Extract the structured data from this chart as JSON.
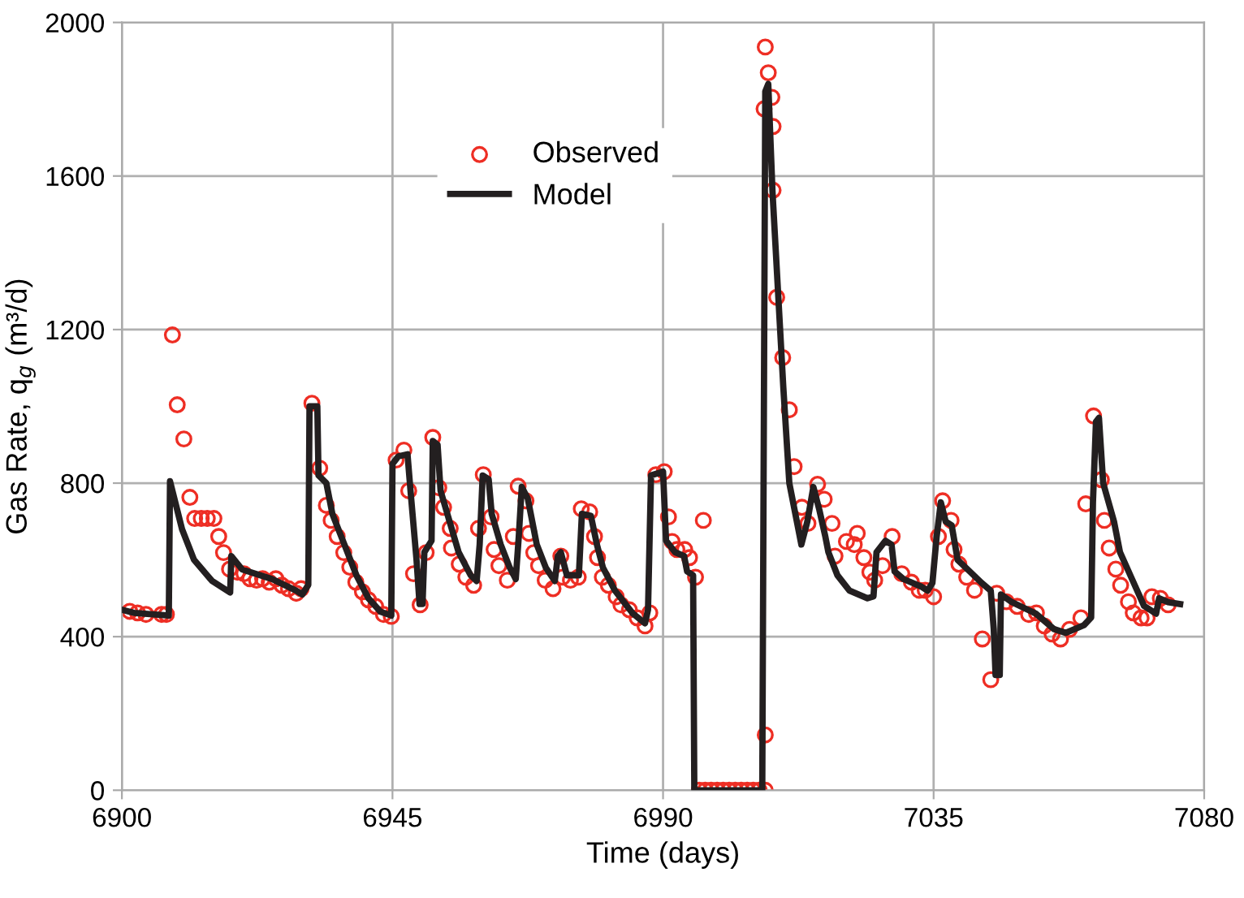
{
  "chart_data": {
    "type": "scatter",
    "xlabel": "Time (days)",
    "ylabel": "Gas Rate, q$_{g}$ (m³/d)",
    "xlim": [
      6900,
      7080
    ],
    "xticks": [
      6900,
      6945,
      6990,
      7035,
      7080
    ],
    "ylim": [
      0,
      2000
    ],
    "yticks": [
      0,
      400,
      800,
      1200,
      1600,
      2000
    ],
    "grid": true,
    "legend": "top",
    "series": [
      {
        "name": "Observed",
        "marker": "circle",
        "color": "#ee2e24",
        "x": [
          6901.3,
          6902.6,
          6904,
          6906.6,
          6907.4,
          6908.4,
          6909.2,
          6910.3,
          6911.3,
          6912.1,
          6913.2,
          6914.2,
          6915.3,
          6916.1,
          6916.9,
          6917.9,
          6919.2,
          6920.3,
          6921.3,
          6922.4,
          6923.4,
          6924.5,
          6925.6,
          6926.6,
          6927.7,
          6929,
          6929.8,
          6931.6,
          6932.9,
          6934,
          6934.8,
          6935.8,
          6936.9,
          6937.9,
          6938.9,
          6940,
          6941,
          6942.2,
          6943.5,
          6944.8,
          6945.6,
          6946.9,
          6947.7,
          6948.5,
          6949.6,
          6950.6,
          6951.7,
          6952.7,
          6953.5,
          6954.6,
          6954.8,
          6956.1,
          6957.2,
          6958.5,
          6959.3,
          6960.1,
          6961.4,
          6961.9,
          6962.7,
          6964.1,
          6965.1,
          6965.9,
          6967.2,
          6967.7,
          6968.5,
          6969.3,
          6970.4,
          6971.7,
          6973.0,
          6973.3,
          6974.6,
          6975.9,
          6976.4,
          6977.8,
          6978.6,
          6979.1,
          6979.9,
          6980.9,
          6982.2,
          6983.0,
          6984.4,
          6985.7,
          6987.0,
          6987.8,
          6988.8,
          6990.2,
          6990.9,
          6991.5,
          6992.3,
          6993.6,
          6994.4,
          6995.4,
          6996.7,
          6996,
          6997,
          6998,
          6999,
          7000,
          7001,
          7002,
          7003,
          7004,
          7005,
          7006,
          7007,
          7007.0,
          7007.0,
          7007.5,
          7006.8,
          7008.1,
          7008.3,
          7008.3,
          7008.9,
          7009.9,
          7011.0,
          7011.8,
          7013.1,
          7014.1,
          7015.7,
          7016.8,
          7018.1,
          7018.6,
          7020.5,
          7021.8,
          7022.3,
          7023.4,
          7024.4,
          7025.2,
          7026.5,
          7028.1,
          7029.7,
          7031.3,
          7032.6,
          7033.6,
          7035.0,
          7035.8,
          7036.5,
          7037.9,
          7038.4,
          7039.2,
          7040.5,
          7041.8,
          7043.1,
          7044.5,
          7045.5,
          7047.1,
          7048.9,
          7050.8,
          7052.1,
          7053.4,
          7054.7,
          7056.1,
          7057.6,
          7059.5,
          7060.3,
          7061.6,
          7062.9,
          7063.4,
          7064.2,
          7065.3,
          7066.1,
          7067.4,
          7068.2,
          7069.5,
          7070.5,
          7071.3,
          7072.7,
          7074.0
        ],
        "values": [
          466,
          462,
          458,
          458,
          458,
          1186,
          1004,
          915,
          763,
          708,
          708,
          708,
          708,
          661,
          619,
          576,
          568,
          564,
          551,
          547,
          551,
          542,
          551,
          534,
          525,
          513,
          525,
          1008,
          839,
          742,
          703,
          661,
          619,
          581,
          542,
          517,
          496,
          479,
          458,
          453,
          860,
          886,
          780,
          564,
          483,
          619,
          919,
          788,
          737,
          682,
          631,
          589,
          555,
          534,
          682,
          822,
          712,
          627,
          585,
          547,
          661,
          792,
          754,
          669,
          619,
          585,
          547,
          525,
          610,
          555,
          547,
          555,
          733,
          725,
          661,
          606,
          555,
          534,
          504,
          483,
          470,
          449,
          428,
          462,
          822,
          830,
          712,
          648,
          627,
          627,
          606,
          555,
          703,
          0,
          0,
          0,
          0,
          0,
          0,
          0,
          0,
          0,
          0,
          0,
          0,
          144,
          1936,
          1869,
          1775,
          1805,
          1729,
          1563,
          1284,
          1127,
          991,
          843,
          737,
          695,
          797,
          758,
          695,
          610,
          648,
          640,
          669,
          606,
          568,
          547,
          585,
          661,
          564,
          542,
          521,
          521,
          504,
          661,
          754,
          703,
          627,
          589,
          555,
          521,
          394,
          288,
          513,
          491,
          479,
          458,
          462,
          428,
          407,
          394,
          419,
          449,
          746,
          975,
          809,
          703,
          631,
          576,
          534,
          491,
          462,
          449,
          449,
          504,
          500,
          483
        ]
      },
      {
        "name": "Model",
        "type": "line",
        "marker": "none",
        "line_style": "solid",
        "color": "#231f20",
        "x": [
          6900,
          6902,
          6907.8,
          6908,
          6910,
          6912,
          6915,
          6918,
          6918.2,
          6920,
          6925,
          6929,
          6930,
          6931,
          6931.2,
          6932.5,
          6932.7,
          6934,
          6935,
          6937,
          6939,
          6941,
          6943,
          6944.8,
          6945,
          6946,
          6947.5,
          6948,
          6949,
          6949.5,
          6950,
          6950.3,
          6951.5,
          6951.7,
          6952.5,
          6953,
          6954.5,
          6956,
          6958,
          6959,
          6959.5,
          6960,
          6961,
          6961.5,
          6963,
          6964.5,
          6965.5,
          6966,
          6966.5,
          6967.5,
          6969,
          6970.5,
          6972,
          6972.5,
          6973,
          6974,
          6976,
          6976.5,
          6978,
          6979,
          6980,
          6982,
          6985,
          6987,
          6987.5,
          6988,
          6990,
          6990.5,
          6992,
          6993.5,
          6994,
          6995,
          6995.2,
          7006.5,
          7007,
          7007.5,
          7008.2,
          7010,
          7011,
          7012.5,
          7013,
          7014,
          7015,
          7016,
          7017,
          7017.5,
          7019,
          7021,
          7024,
          7025,
          7025.5,
          7027,
          7028,
          7028.5,
          7030,
          7033,
          7034,
          7034.8,
          7035.5,
          7036.2,
          7037,
          7038,
          7039,
          7041,
          7043,
          7044.5,
          7045,
          7045.3,
          7046,
          7046.2,
          7048,
          7052,
          7055,
          7057,
          7060,
          7061.2,
          7061.5,
          7062,
          7062.5,
          7063.2,
          7065,
          7066,
          7068,
          7070,
          7072,
          7072.5,
          7074,
          7076
        ],
        "values": [
          470,
          462,
          455,
          805,
          680,
          600,
          545,
          515,
          610,
          575,
          550,
          520,
          510,
          535,
          1000,
          1000,
          820,
          800,
          720,
          640,
          560,
          500,
          465,
          455,
          850,
          870,
          875,
          780,
          600,
          485,
          485,
          620,
          650,
          910,
          900,
          780,
          700,
          620,
          560,
          545,
          640,
          820,
          810,
          720,
          640,
          580,
          550,
          660,
          790,
          760,
          640,
          580,
          545,
          610,
          620,
          560,
          560,
          720,
          715,
          640,
          580,
          520,
          460,
          435,
          470,
          820,
          830,
          650,
          620,
          610,
          570,
          560,
          0,
          0,
          1820,
          1840,
          1560,
          1050,
          800,
          680,
          640,
          700,
          790,
          730,
          660,
          620,
          560,
          520,
          500,
          505,
          620,
          650,
          640,
          570,
          550,
          530,
          520,
          540,
          660,
          750,
          700,
          690,
          600,
          570,
          540,
          520,
          420,
          300,
          300,
          510,
          490,
          460,
          420,
          410,
          430,
          450,
          750,
          960,
          970,
          800,
          700,
          620,
          550,
          480,
          460,
          500,
          490,
          485
        ]
      }
    ]
  }
}
